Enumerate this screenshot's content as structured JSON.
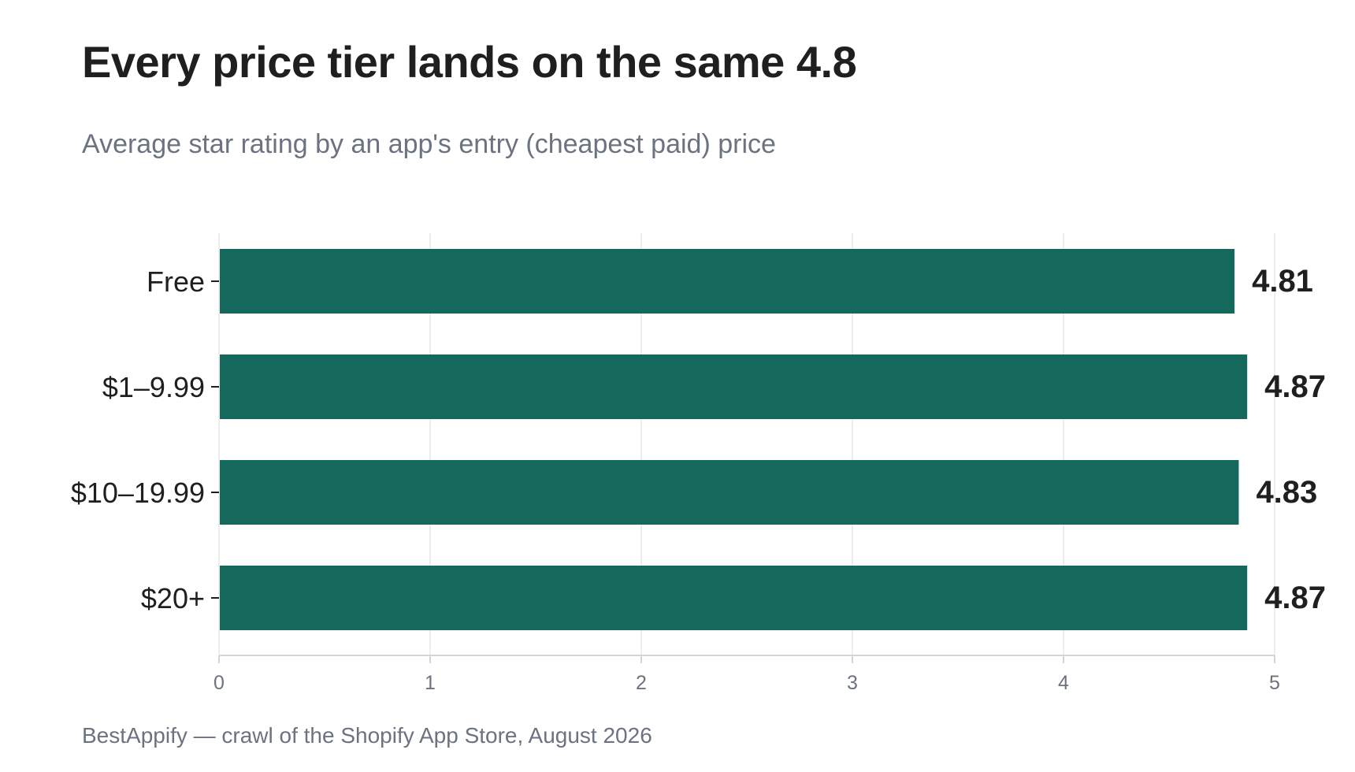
{
  "header": {
    "title": "Every price tier lands on the same 4.8",
    "subtitle": "Average star rating by an app's entry (cheapest paid) price"
  },
  "footer": {
    "source": "BestAppify — crawl of the Shopify App Store, August 2026"
  },
  "colors": {
    "bar": "#15695c",
    "grid": "#eeeeee",
    "axis": "#d4d4dc",
    "category_text": "#1f1f1f",
    "value_text": "#1f1f1f",
    "tick_text": "#6b7280"
  },
  "chart_data": {
    "type": "bar",
    "orientation": "horizontal",
    "categories": [
      "Free",
      "$1–9.99",
      "$10–19.99",
      "$20+"
    ],
    "values": [
      4.81,
      4.87,
      4.83,
      4.87
    ],
    "value_labels": [
      "4.81",
      "4.87",
      "4.83",
      "4.87"
    ],
    "xlim": [
      0,
      5
    ],
    "x_ticks": [
      "0",
      "1",
      "2",
      "3",
      "4",
      "5"
    ],
    "grid": "vertical",
    "legend": "none"
  }
}
